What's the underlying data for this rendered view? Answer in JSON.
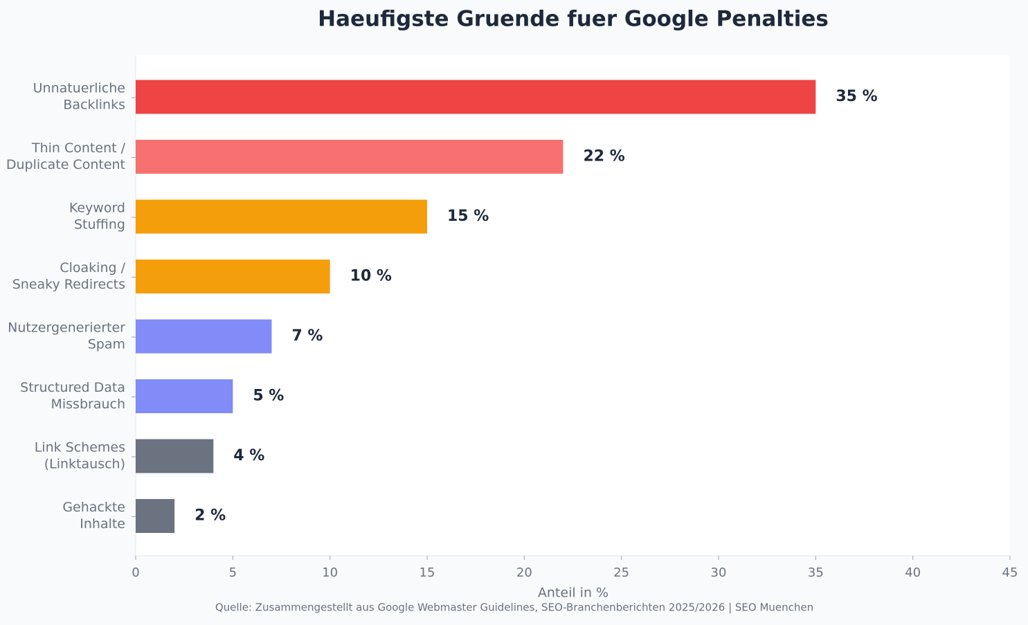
{
  "chart_data": {
    "type": "barh",
    "title": "Haeufigste Gruende fuer Google Penalties",
    "categories": [
      [
        "Unnatuerliche",
        "Backlinks"
      ],
      [
        "Thin Content /",
        "Duplicate Content"
      ],
      [
        "Keyword",
        "Stuffing"
      ],
      [
        "Cloaking /",
        "Sneaky Redirects"
      ],
      [
        "Nutzergenerierter",
        "Spam"
      ],
      [
        "Structured Data",
        "Missbrauch"
      ],
      [
        "Link Schemes",
        "(Linktausch)"
      ],
      [
        "Gehackte",
        "Inhalte"
      ]
    ],
    "values": [
      35,
      22,
      15,
      10,
      7,
      5,
      4,
      2
    ],
    "value_labels": [
      "35 %",
      "22 %",
      "15 %",
      "10 %",
      "7 %",
      "5 %",
      "4 %",
      "2 %"
    ],
    "colors": [
      "#ef4444",
      "#f87171",
      "#f59e0b",
      "#f59e0b",
      "#818cf8",
      "#818cf8",
      "#6b7280",
      "#6b7280"
    ],
    "xlim": [
      0,
      45
    ],
    "xticks": [
      0,
      5,
      10,
      15,
      20,
      25,
      30,
      35,
      40,
      45
    ],
    "xlabel": "Anteil in %",
    "source": "Quelle: Zusammengestellt aus Google Webmaster Guidelines, SEO-Branchenberichten 2025/2026 | SEO Muenchen",
    "grid": false
  }
}
